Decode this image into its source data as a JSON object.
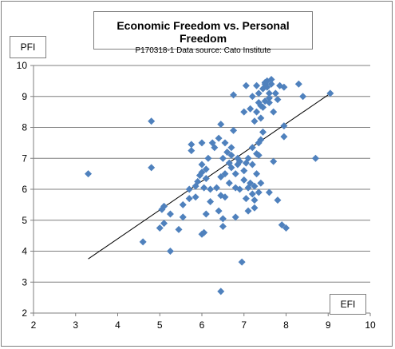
{
  "chart_data": {
    "type": "scatter",
    "title": "Economic Freedom vs. Personal Freedom",
    "subtitle": "P170318-1 Data source: Cato Institute",
    "xlabel": "EFI",
    "ylabel": "PFI",
    "xlim": [
      2,
      10
    ],
    "ylim": [
      2,
      10
    ],
    "xticks": [
      2,
      3,
      4,
      5,
      6,
      7,
      8,
      9,
      10
    ],
    "yticks": [
      2,
      3,
      4,
      5,
      6,
      7,
      8,
      9,
      10
    ],
    "grid": "horizontal",
    "marker": "diamond",
    "marker_color": "#4f81bd",
    "trendline": {
      "x": [
        3.3,
        9.0
      ],
      "y": [
        3.75,
        9.05
      ]
    },
    "points": [
      [
        3.3,
        6.5
      ],
      [
        4.6,
        4.3
      ],
      [
        4.8,
        8.2
      ],
      [
        4.8,
        6.7
      ],
      [
        5.0,
        4.75
      ],
      [
        5.05,
        5.35
      ],
      [
        5.1,
        5.45
      ],
      [
        5.1,
        4.9
      ],
      [
        5.25,
        5.2
      ],
      [
        5.25,
        4.0
      ],
      [
        5.45,
        4.7
      ],
      [
        5.55,
        5.5
      ],
      [
        5.55,
        5.1
      ],
      [
        5.7,
        6.0
      ],
      [
        5.7,
        5.7
      ],
      [
        5.75,
        7.45
      ],
      [
        5.75,
        7.25
      ],
      [
        5.85,
        6.1
      ],
      [
        5.85,
        5.75
      ],
      [
        5.9,
        6.25
      ],
      [
        5.95,
        6.45
      ],
      [
        6.0,
        7.5
      ],
      [
        6.0,
        6.8
      ],
      [
        6.0,
        6.55
      ],
      [
        6.0,
        4.55
      ],
      [
        6.05,
        4.6
      ],
      [
        6.05,
        6.05
      ],
      [
        6.1,
        6.65
      ],
      [
        6.1,
        6.35
      ],
      [
        6.1,
        5.2
      ],
      [
        6.15,
        7.0
      ],
      [
        6.2,
        6.0
      ],
      [
        6.2,
        5.6
      ],
      [
        6.25,
        7.5
      ],
      [
        6.3,
        7.35
      ],
      [
        6.35,
        6.05
      ],
      [
        6.4,
        7.65
      ],
      [
        6.4,
        5.3
      ],
      [
        6.45,
        8.1
      ],
      [
        6.45,
        5.8
      ],
      [
        6.45,
        6.4
      ],
      [
        6.45,
        2.7
      ],
      [
        6.5,
        7.0
      ],
      [
        6.5,
        5.05
      ],
      [
        6.5,
        4.8
      ],
      [
        6.55,
        7.5
      ],
      [
        6.55,
        6.5
      ],
      [
        6.55,
        5.75
      ],
      [
        6.6,
        7.2
      ],
      [
        6.65,
        6.85
      ],
      [
        6.65,
        6.2
      ],
      [
        6.7,
        7.35
      ],
      [
        6.7,
        7.1
      ],
      [
        6.7,
        6.7
      ],
      [
        6.75,
        9.05
      ],
      [
        6.75,
        7.9
      ],
      [
        6.8,
        6.5
      ],
      [
        6.8,
        6.05
      ],
      [
        6.8,
        5.1
      ],
      [
        6.85,
        7.0
      ],
      [
        6.85,
        6.8
      ],
      [
        6.9,
        6.9
      ],
      [
        6.9,
        6.0
      ],
      [
        6.95,
        3.65
      ],
      [
        7.0,
        6.6
      ],
      [
        7.0,
        6.3
      ],
      [
        7.0,
        8.5
      ],
      [
        7.05,
        9.35
      ],
      [
        7.05,
        6.85
      ],
      [
        7.05,
        5.7
      ],
      [
        7.1,
        7.0
      ],
      [
        7.1,
        6.05
      ],
      [
        7.1,
        5.3
      ],
      [
        7.15,
        8.6
      ],
      [
        7.15,
        6.2
      ],
      [
        7.2,
        9.0
      ],
      [
        7.2,
        7.35
      ],
      [
        7.2,
        6.8
      ],
      [
        7.2,
        5.85
      ],
      [
        7.25,
        8.2
      ],
      [
        7.25,
        6.1
      ],
      [
        7.25,
        5.65
      ],
      [
        7.25,
        5.4
      ],
      [
        7.3,
        9.35
      ],
      [
        7.3,
        8.5
      ],
      [
        7.3,
        7.15
      ],
      [
        7.3,
        6.5
      ],
      [
        7.35,
        9.1
      ],
      [
        7.35,
        8.8
      ],
      [
        7.35,
        7.5
      ],
      [
        7.35,
        7.1
      ],
      [
        7.35,
        5.9
      ],
      [
        7.4,
        8.7
      ],
      [
        7.4,
        8.3
      ],
      [
        7.4,
        7.6
      ],
      [
        7.4,
        6.2
      ],
      [
        7.45,
        9.25
      ],
      [
        7.45,
        8.65
      ],
      [
        7.45,
        7.85
      ],
      [
        7.5,
        9.45
      ],
      [
        7.5,
        9.4
      ],
      [
        7.5,
        8.85
      ],
      [
        7.55,
        9.5
      ],
      [
        7.55,
        9.3
      ],
      [
        7.6,
        9.1
      ],
      [
        7.6,
        8.95
      ],
      [
        7.6,
        8.8
      ],
      [
        7.6,
        5.9
      ],
      [
        7.65,
        9.55
      ],
      [
        7.65,
        9.4
      ],
      [
        7.7,
        8.5
      ],
      [
        7.7,
        6.9
      ],
      [
        7.75,
        9.1
      ],
      [
        7.8,
        8.9
      ],
      [
        7.8,
        5.65
      ],
      [
        7.85,
        9.35
      ],
      [
        7.9,
        4.85
      ],
      [
        7.95,
        9.3
      ],
      [
        7.95,
        8.05
      ],
      [
        7.95,
        7.7
      ],
      [
        8.0,
        4.75
      ],
      [
        8.3,
        9.4
      ],
      [
        8.4,
        9.0
      ],
      [
        8.7,
        7.0
      ],
      [
        9.05,
        9.1
      ]
    ]
  }
}
